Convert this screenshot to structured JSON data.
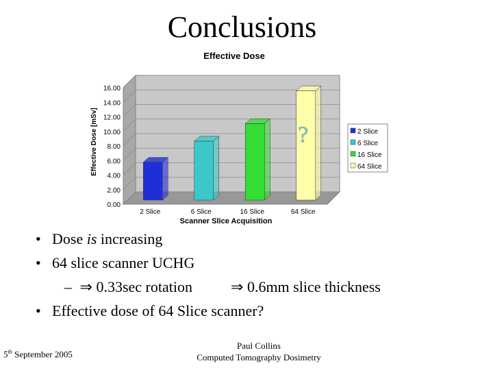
{
  "slide": {
    "title": "Conclusions",
    "bullets": [
      {
        "pre": "Dose ",
        "em": "is",
        "post": " increasing"
      },
      {
        "pre": "64 slice scanner UCHG",
        "em": "",
        "post": ""
      },
      {
        "pre": "Effective dose of 64 Slice scanner?",
        "em": "",
        "post": ""
      }
    ],
    "sub_bullet": {
      "dash": "–",
      "arrow": "⇒",
      "part1": "0.33sec rotation",
      "part2": "0.6mm slice thickness"
    },
    "footer": {
      "date_day": "5",
      "date_suffix": "th",
      "date_rest": " September 2005",
      "author": "Paul Collins",
      "subtitle": "Computed Tomography Dosimetry"
    }
  },
  "chart_data": {
    "type": "bar",
    "title": "Effective Dose",
    "xlabel": "Scanner Slice Acquisition",
    "ylabel": "Effective Dose [mSv]",
    "ylim": [
      0,
      16
    ],
    "yticks": [
      "0.00",
      "2.00",
      "4.00",
      "6.00",
      "8.00",
      "10.00",
      "12.00",
      "14.00",
      "16.00"
    ],
    "categories": [
      "2 Slice",
      "6 Slice",
      "16 Slice",
      "64 Slice"
    ],
    "values": [
      5.2,
      8.1,
      10.5,
      15.0
    ],
    "colors": [
      "#1f2fd8",
      "#3cc8c8",
      "#33dd33",
      "#ffffaa"
    ],
    "legend_position": "right",
    "legend": [
      "2 Slice",
      "6 Slice",
      "16 Slice",
      "64 Slice"
    ],
    "annotation": "?",
    "grid": true
  }
}
